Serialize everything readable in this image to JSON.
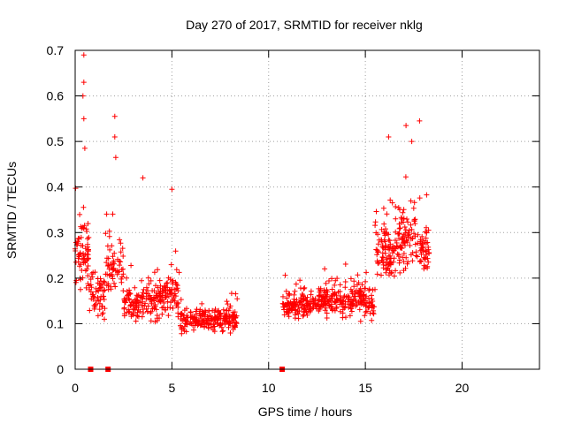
{
  "chart_data": {
    "type": "scatter",
    "title": "Day 270 of 2017, SRMTID for receiver nklg",
    "xlabel": "GPS time / hours",
    "ylabel": "SRMTID / TECUs",
    "xlim": [
      0,
      24
    ],
    "ylim": [
      0,
      0.7
    ],
    "xticks": [
      0,
      5,
      10,
      15,
      20
    ],
    "yticks": [
      0,
      0.1,
      0.2,
      0.3,
      0.4,
      0.5,
      0.6,
      0.7
    ],
    "ytick_labels": [
      "0",
      "0.1",
      "0.2",
      "0.3",
      "0.4",
      "0.5",
      "0.6",
      "0.7"
    ],
    "grid": true,
    "marker": "+",
    "series_color": "#ff0000",
    "notable_points": [
      {
        "x": 0.45,
        "y": 0.69
      },
      {
        "x": 0.45,
        "y": 0.63
      },
      {
        "x": 0.4,
        "y": 0.6
      },
      {
        "x": 0.45,
        "y": 0.55
      },
      {
        "x": 0.5,
        "y": 0.485
      },
      {
        "x": 2.05,
        "y": 0.555
      },
      {
        "x": 2.05,
        "y": 0.51
      },
      {
        "x": 2.1,
        "y": 0.465
      },
      {
        "x": 3.5,
        "y": 0.42
      },
      {
        "x": 5.0,
        "y": 0.395
      },
      {
        "x": 16.2,
        "y": 0.51
      },
      {
        "x": 17.1,
        "y": 0.535
      },
      {
        "x": 17.4,
        "y": 0.5
      },
      {
        "x": 17.8,
        "y": 0.545
      }
    ],
    "clusters": [
      {
        "x_start": 0.0,
        "x_end": 0.7,
        "y_center": 0.26,
        "y_spread": 0.1,
        "count": 70
      },
      {
        "x_start": 0.7,
        "x_end": 1.6,
        "y_center": 0.17,
        "y_spread": 0.07,
        "count": 60
      },
      {
        "x_start": 1.6,
        "x_end": 2.5,
        "y_center": 0.22,
        "y_spread": 0.09,
        "count": 60
      },
      {
        "x_start": 2.5,
        "x_end": 3.4,
        "y_center": 0.14,
        "y_spread": 0.06,
        "count": 70
      },
      {
        "x_start": 3.4,
        "x_end": 4.6,
        "y_center": 0.15,
        "y_spread": 0.06,
        "count": 90
      },
      {
        "x_start": 4.6,
        "x_end": 5.4,
        "y_center": 0.17,
        "y_spread": 0.08,
        "count": 60
      },
      {
        "x_start": 5.4,
        "x_end": 8.4,
        "y_center": 0.11,
        "y_spread": 0.035,
        "count": 230
      },
      {
        "x_start": 10.7,
        "x_end": 12.5,
        "y_center": 0.14,
        "y_spread": 0.035,
        "count": 140
      },
      {
        "x_start": 12.5,
        "x_end": 14.0,
        "y_center": 0.15,
        "y_spread": 0.045,
        "count": 120
      },
      {
        "x_start": 14.0,
        "x_end": 15.5,
        "y_center": 0.15,
        "y_spread": 0.05,
        "count": 110
      },
      {
        "x_start": 15.5,
        "x_end": 16.5,
        "y_center": 0.25,
        "y_spread": 0.08,
        "count": 90
      },
      {
        "x_start": 16.5,
        "x_end": 17.6,
        "y_center": 0.29,
        "y_spread": 0.09,
        "count": 90
      },
      {
        "x_start": 17.6,
        "x_end": 18.3,
        "y_center": 0.26,
        "y_spread": 0.07,
        "count": 50
      }
    ],
    "zero_markers": [
      {
        "x": 0.8,
        "y": 0
      },
      {
        "x": 1.7,
        "y": 0
      },
      {
        "x": 10.7,
        "y": 0
      }
    ]
  }
}
